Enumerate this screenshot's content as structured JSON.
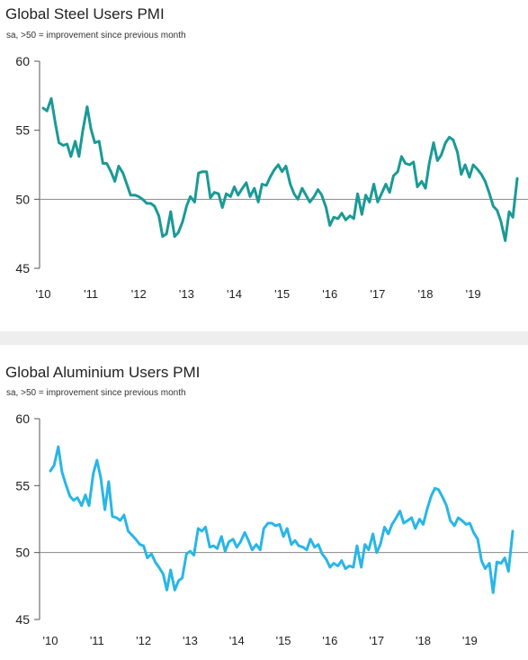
{
  "chart_data": [
    {
      "type": "line",
      "title": "Global Steel Users PMI",
      "subtitle": "sa, >50 = improvement since previous month",
      "color": "#1a9a96",
      "ylim": [
        45,
        60
      ],
      "yticks": [
        45,
        50,
        55,
        60
      ],
      "reference_line": 50,
      "xlim": [
        2010.0,
        2019.92
      ],
      "xticks": [
        {
          "x": 2010,
          "label": "'10"
        },
        {
          "x": 2011,
          "label": "'11"
        },
        {
          "x": 2012,
          "label": "'12"
        },
        {
          "x": 2013,
          "label": "'13"
        },
        {
          "x": 2014,
          "label": "'14"
        },
        {
          "x": 2015,
          "label": "'15"
        },
        {
          "x": 2016,
          "label": "'16"
        },
        {
          "x": 2017,
          "label": "'17"
        },
        {
          "x": 2018,
          "label": "'18"
        },
        {
          "x": 2019,
          "label": "'19"
        }
      ],
      "series": [
        {
          "x": [
            2010.0,
            2010.08,
            2010.17,
            2010.25,
            2010.33,
            2010.42,
            2010.5,
            2010.58,
            2010.67,
            2010.75,
            2010.83,
            2010.92,
            2011.0,
            2011.08,
            2011.17,
            2011.25,
            2011.33,
            2011.42,
            2011.5,
            2011.58,
            2011.67,
            2011.75,
            2011.83,
            2011.92,
            2012.0,
            2012.08,
            2012.17,
            2012.25,
            2012.33,
            2012.42,
            2012.5,
            2012.58,
            2012.67,
            2012.75,
            2012.83,
            2012.92,
            2013.0,
            2013.08,
            2013.17,
            2013.25,
            2013.33,
            2013.42,
            2013.5,
            2013.58,
            2013.67,
            2013.75,
            2013.83,
            2013.92,
            2014.0,
            2014.08,
            2014.17,
            2014.25,
            2014.33,
            2014.42,
            2014.5,
            2014.58,
            2014.67,
            2014.75,
            2014.83,
            2014.92,
            2015.0,
            2015.08,
            2015.17,
            2015.25,
            2015.33,
            2015.42,
            2015.5,
            2015.58,
            2015.67,
            2015.75,
            2015.83,
            2015.92,
            2016.0,
            2016.08,
            2016.17,
            2016.25,
            2016.33,
            2016.42,
            2016.5,
            2016.58,
            2016.67,
            2016.75,
            2016.83,
            2016.92,
            2017.0,
            2017.08,
            2017.17,
            2017.25,
            2017.33,
            2017.42,
            2017.5,
            2017.58,
            2017.67,
            2017.75,
            2017.83,
            2017.92,
            2018.0,
            2018.08,
            2018.17,
            2018.25,
            2018.33,
            2018.42,
            2018.5,
            2018.58,
            2018.67,
            2018.75,
            2018.83,
            2018.92,
            2019.0,
            2019.08,
            2019.17,
            2019.25,
            2019.33,
            2019.42,
            2019.5,
            2019.58,
            2019.67,
            2019.75,
            2019.83,
            2019.92
          ],
          "y": [
            56.6,
            56.4,
            57.3,
            55.6,
            54.1,
            53.9,
            54.0,
            53.1,
            54.2,
            53.1,
            55.0,
            56.7,
            55.1,
            54.1,
            54.2,
            52.6,
            52.6,
            52.0,
            51.3,
            52.4,
            51.9,
            51.1,
            50.3,
            50.3,
            50.2,
            50.0,
            49.7,
            49.7,
            49.5,
            48.8,
            47.3,
            47.5,
            49.1,
            47.3,
            47.6,
            48.4,
            49.5,
            50.2,
            49.8,
            51.9,
            52.0,
            52.0,
            50.1,
            50.5,
            50.4,
            49.4,
            50.4,
            50.2,
            50.9,
            50.3,
            50.8,
            51.2,
            50.2,
            50.8,
            49.8,
            51.1,
            51.0,
            51.6,
            52.1,
            52.5,
            52.0,
            52.4,
            51.1,
            50.4,
            50.0,
            50.8,
            50.3,
            49.8,
            50.2,
            50.7,
            50.3,
            49.4,
            48.1,
            48.7,
            48.6,
            49.0,
            48.5,
            48.8,
            48.6,
            50.4,
            48.9,
            50.3,
            49.8,
            51.1,
            49.8,
            50.4,
            51.1,
            50.5,
            51.7,
            52.0,
            53.1,
            52.6,
            52.5,
            52.7,
            50.9,
            51.3,
            50.8,
            52.6,
            54.1,
            52.8,
            53.2,
            54.1,
            54.5,
            54.3,
            53.4,
            51.8,
            52.5,
            51.6,
            52.5,
            52.2,
            51.8,
            51.3,
            50.5,
            49.5,
            49.2,
            48.4,
            47.0,
            49.1,
            48.7,
            51.5
          ]
        }
      ]
    },
    {
      "type": "line",
      "title": "Global Aluminium Users PMI",
      "subtitle": "sa, >50 = improvement since previous month",
      "color": "#29b6e6",
      "ylim": [
        45,
        60
      ],
      "yticks": [
        45,
        50,
        55,
        60
      ],
      "reference_line": 50,
      "xlim": [
        2010.0,
        2019.92
      ],
      "xticks": [
        {
          "x": 2010,
          "label": "'10"
        },
        {
          "x": 2011,
          "label": "'11"
        },
        {
          "x": 2012,
          "label": "'12"
        },
        {
          "x": 2013,
          "label": "'13"
        },
        {
          "x": 2014,
          "label": "'14"
        },
        {
          "x": 2015,
          "label": "'15"
        },
        {
          "x": 2016,
          "label": "'16"
        },
        {
          "x": 2017,
          "label": "'17"
        },
        {
          "x": 2018,
          "label": "'18"
        },
        {
          "x": 2019,
          "label": "'19"
        }
      ],
      "series": [
        {
          "x": [
            2010.0,
            2010.08,
            2010.17,
            2010.25,
            2010.33,
            2010.42,
            2010.5,
            2010.58,
            2010.67,
            2010.75,
            2010.83,
            2010.92,
            2011.0,
            2011.08,
            2011.17,
            2011.25,
            2011.33,
            2011.42,
            2011.5,
            2011.58,
            2011.67,
            2011.75,
            2011.83,
            2011.92,
            2012.0,
            2012.08,
            2012.17,
            2012.25,
            2012.33,
            2012.42,
            2012.5,
            2012.58,
            2012.67,
            2012.75,
            2012.83,
            2012.92,
            2013.0,
            2013.08,
            2013.17,
            2013.25,
            2013.33,
            2013.42,
            2013.5,
            2013.58,
            2013.67,
            2013.75,
            2013.83,
            2013.92,
            2014.0,
            2014.08,
            2014.17,
            2014.25,
            2014.33,
            2014.42,
            2014.5,
            2014.58,
            2014.67,
            2014.75,
            2014.83,
            2014.92,
            2015.0,
            2015.08,
            2015.17,
            2015.25,
            2015.33,
            2015.42,
            2015.5,
            2015.58,
            2015.67,
            2015.75,
            2015.83,
            2015.92,
            2016.0,
            2016.08,
            2016.17,
            2016.25,
            2016.33,
            2016.42,
            2016.5,
            2016.58,
            2016.67,
            2016.75,
            2016.83,
            2016.92,
            2017.0,
            2017.08,
            2017.17,
            2017.25,
            2017.33,
            2017.42,
            2017.5,
            2017.58,
            2017.67,
            2017.75,
            2017.83,
            2017.92,
            2018.0,
            2018.08,
            2018.17,
            2018.25,
            2018.33,
            2018.42,
            2018.5,
            2018.58,
            2018.67,
            2018.75,
            2018.83,
            2018.92,
            2019.0,
            2019.08,
            2019.17,
            2019.25,
            2019.33,
            2019.42,
            2019.5,
            2019.58,
            2019.67,
            2019.75,
            2019.83,
            2019.92
          ],
          "y": [
            56.1,
            56.5,
            57.9,
            56.0,
            55.1,
            54.2,
            53.9,
            54.1,
            53.5,
            54.3,
            53.5,
            55.9,
            56.9,
            55.6,
            53.2,
            55.3,
            52.7,
            52.6,
            52.4,
            52.8,
            51.6,
            51.3,
            51.0,
            50.6,
            50.5,
            49.6,
            49.9,
            49.3,
            48.9,
            48.4,
            47.2,
            48.7,
            47.2,
            47.9,
            48.1,
            49.9,
            50.1,
            49.8,
            51.8,
            51.6,
            51.9,
            50.4,
            50.5,
            50.3,
            51.2,
            50.1,
            50.8,
            51.0,
            50.4,
            50.8,
            51.5,
            50.9,
            50.2,
            50.6,
            50.2,
            51.8,
            52.2,
            52.2,
            52.0,
            52.1,
            51.2,
            51.8,
            50.6,
            50.9,
            50.5,
            50.4,
            50.2,
            51.0,
            50.4,
            50.6,
            49.9,
            49.5,
            48.9,
            49.2,
            49.0,
            49.4,
            48.8,
            49.0,
            48.9,
            50.5,
            48.9,
            50.6,
            50.2,
            51.4,
            50.0,
            50.6,
            51.9,
            51.4,
            52.1,
            52.6,
            53.1,
            52.2,
            52.4,
            52.6,
            51.8,
            52.5,
            52.1,
            53.2,
            54.2,
            54.8,
            54.7,
            54.1,
            53.5,
            52.4,
            52.0,
            52.6,
            52.4,
            52.1,
            52.2,
            51.5,
            51.0,
            49.4,
            48.8,
            49.2,
            47.0,
            49.3,
            49.2,
            49.6,
            48.6,
            51.6
          ]
        }
      ]
    }
  ]
}
